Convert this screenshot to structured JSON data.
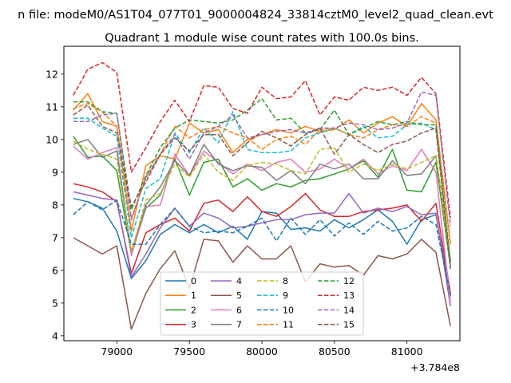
{
  "chart_data": {
    "type": "line",
    "suptitle": "n file: modeM0/AS1T04_077T01_9000004824_33814cztM0_level2_quad_clean.evt",
    "title": "Quadrant 1 module wise count rates with 100.0s bins.",
    "xlabel": "",
    "ylabel": "",
    "x_offset_label": "+3.784e8",
    "xlim": [
      78635,
      81365
    ],
    "ylim": [
      3.85,
      12.85
    ],
    "xticks": [
      79000,
      79500,
      80000,
      80500,
      81000
    ],
    "xtick_labels": [
      "79000",
      "79500",
      "80000",
      "80500",
      "81000"
    ],
    "yticks": [
      4,
      5,
      6,
      7,
      8,
      9,
      10,
      11,
      12
    ],
    "ytick_labels": [
      "4",
      "5",
      "6",
      "7",
      "8",
      "9",
      "10",
      "11",
      "12"
    ],
    "grid": false,
    "legend_position": "lower-center",
    "legend_columns": 4,
    "x": [
      78700,
      78800,
      78900,
      79000,
      79100,
      79200,
      79300,
      79400,
      79500,
      79600,
      79700,
      79800,
      79900,
      80000,
      80100,
      80200,
      80300,
      80400,
      80500,
      80600,
      80700,
      80800,
      80900,
      81000,
      81100,
      81200,
      81300
    ],
    "series": [
      {
        "name": "0",
        "color": "#1f77b4",
        "dash": "solid",
        "values": [
          8.2,
          8.1,
          7.9,
          7.2,
          5.75,
          6.3,
          7.1,
          7.4,
          7.15,
          7.4,
          7.15,
          7.35,
          6.95,
          7.8,
          7.75,
          7.25,
          7.3,
          7.2,
          7.55,
          7.3,
          7.55,
          7.85,
          7.5,
          6.8,
          7.55,
          7.7,
          5.2
        ]
      },
      {
        "name": "1",
        "color": "#ff7f0e",
        "dash": "solid",
        "values": [
          10.9,
          11.4,
          10.55,
          10.4,
          7.2,
          9.2,
          9.5,
          9.4,
          10.5,
          10.2,
          10.3,
          9.6,
          10.0,
          10.15,
          10.3,
          10.2,
          10.4,
          10.25,
          10.3,
          10.6,
          10.2,
          10.5,
          10.7,
          10.4,
          11.1,
          10.6,
          6.8
        ]
      },
      {
        "name": "2",
        "color": "#2ca02c",
        "dash": "solid",
        "values": [
          10.1,
          9.45,
          9.5,
          9.05,
          6.5,
          7.9,
          8.3,
          9.4,
          8.3,
          9.3,
          9.4,
          8.55,
          8.8,
          8.45,
          8.65,
          8.55,
          8.75,
          8.8,
          8.95,
          9.1,
          9.35,
          8.85,
          9.7,
          8.45,
          8.4,
          9.3,
          6.1
        ]
      },
      {
        "name": "3",
        "color": "#d62728",
        "dash": "solid",
        "values": [
          8.65,
          8.55,
          8.4,
          8.1,
          5.9,
          7.15,
          7.4,
          7.6,
          7.2,
          8.05,
          8.15,
          7.8,
          8.25,
          7.8,
          7.65,
          7.95,
          8.35,
          7.85,
          7.65,
          7.65,
          7.8,
          7.85,
          7.9,
          8.0,
          7.5,
          8.05,
          5.3
        ]
      },
      {
        "name": "4",
        "color": "#9467bd",
        "dash": "solid",
        "values": [
          8.4,
          8.3,
          8.2,
          8.15,
          5.8,
          6.5,
          7.3,
          7.9,
          7.35,
          7.75,
          7.6,
          7.3,
          7.35,
          7.45,
          7.55,
          7.55,
          7.7,
          7.75,
          7.75,
          8.35,
          7.75,
          7.9,
          7.8,
          7.95,
          7.7,
          7.75,
          4.9
        ]
      },
      {
        "name": "5",
        "color": "#8c564b",
        "dash": "solid",
        "values": [
          7.0,
          6.75,
          6.5,
          6.75,
          4.2,
          5.3,
          6.05,
          6.6,
          5.45,
          6.95,
          6.9,
          6.25,
          6.75,
          6.35,
          6.35,
          6.75,
          5.65,
          6.2,
          6.1,
          6.15,
          5.85,
          6.45,
          6.35,
          6.5,
          6.95,
          6.55,
          4.3
        ]
      },
      {
        "name": "6",
        "color": "#e377c2",
        "dash": "solid",
        "values": [
          9.8,
          9.4,
          9.6,
          9.75,
          6.45,
          7.95,
          8.0,
          9.55,
          8.9,
          9.65,
          9.3,
          8.95,
          9.25,
          9.05,
          9.3,
          9.4,
          9.0,
          9.1,
          9.4,
          9.1,
          9.4,
          8.95,
          9.2,
          9.05,
          9.7,
          9.0,
          5.0
        ]
      },
      {
        "name": "7",
        "color": "#7f7f7f",
        "dash": "solid",
        "values": [
          9.85,
          10.0,
          9.45,
          9.65,
          6.55,
          8.0,
          8.55,
          9.35,
          8.9,
          9.85,
          9.25,
          9.05,
          9.2,
          9.15,
          8.75,
          9.05,
          8.65,
          9.25,
          9.1,
          9.25,
          8.8,
          8.8,
          9.35,
          8.9,
          8.95,
          9.5,
          6.3
        ]
      },
      {
        "name": "8",
        "color": "#bcbd22",
        "dash": "dashed",
        "values": [
          9.95,
          9.7,
          9.55,
          9.4,
          6.55,
          8.15,
          8.35,
          9.25,
          8.85,
          9.55,
          9.0,
          8.75,
          9.2,
          9.3,
          9.25,
          9.05,
          8.95,
          9.7,
          9.75,
          9.0,
          9.25,
          9.05,
          9.25,
          9.1,
          9.3,
          9.5,
          6.2
        ]
      },
      {
        "name": "9",
        "color": "#17becf",
        "dash": "dashed",
        "values": [
          10.65,
          10.65,
          10.35,
          10.1,
          7.0,
          8.5,
          8.8,
          10.2,
          9.6,
          10.35,
          9.9,
          10.85,
          9.7,
          9.6,
          9.6,
          9.65,
          10.05,
          10.2,
          10.35,
          10.15,
          10.4,
          10.05,
          10.1,
          10.45,
          10.5,
          10.3,
          6.1
        ]
      },
      {
        "name": "10",
        "color": "#1f77b4",
        "dash": "dashed",
        "values": [
          7.7,
          8.1,
          7.85,
          8.15,
          6.8,
          6.8,
          7.4,
          7.9,
          7.35,
          7.15,
          7.2,
          7.15,
          7.35,
          7.6,
          6.9,
          7.6,
          7.1,
          7.55,
          7.05,
          7.45,
          7.1,
          7.5,
          7.2,
          7.3,
          7.65,
          7.4,
          5.25
        ]
      },
      {
        "name": "11",
        "color": "#ff7f0e",
        "dash": "dashed",
        "values": [
          10.95,
          11.1,
          10.85,
          10.4,
          7.6,
          8.8,
          9.55,
          10.4,
          10.05,
          10.3,
          10.4,
          10.2,
          10.05,
          9.7,
          10.0,
          10.1,
          9.85,
          10.3,
          10.35,
          10.15,
          10.05,
          10.3,
          10.45,
          10.4,
          10.7,
          10.5,
          6.8
        ]
      },
      {
        "name": "12",
        "color": "#2ca02c",
        "dash": "dashed",
        "values": [
          11.15,
          11.15,
          10.85,
          10.8,
          7.85,
          8.9,
          9.75,
          10.35,
          10.6,
          10.55,
          10.5,
          10.6,
          10.9,
          11.25,
          10.6,
          10.65,
          10.2,
          10.3,
          10.9,
          10.15,
          10.35,
          10.55,
          10.45,
          10.55,
          10.45,
          10.45,
          6.25
        ]
      },
      {
        "name": "13",
        "color": "#d62728",
        "dash": "dashed",
        "values": [
          11.35,
          12.15,
          12.35,
          12.05,
          9.0,
          9.75,
          10.55,
          11.2,
          10.55,
          11.65,
          11.6,
          10.95,
          10.8,
          11.6,
          11.25,
          11.3,
          11.8,
          10.75,
          11.3,
          11.2,
          11.6,
          11.5,
          11.6,
          11.35,
          11.9,
          11.4,
          7.6
        ]
      },
      {
        "name": "14",
        "color": "#9467bd",
        "dash": "dashed",
        "values": [
          10.55,
          10.55,
          10.75,
          10.8,
          7.55,
          8.85,
          9.55,
          10.15,
          9.4,
          10.2,
          10.4,
          10.75,
          10.05,
          10.15,
          10.25,
          10.3,
          10.2,
          10.35,
          10.35,
          10.5,
          10.45,
          10.3,
          10.35,
          10.5,
          11.45,
          11.35,
          7.35
        ]
      },
      {
        "name": "15",
        "color": "#8c564b",
        "dash": "dashed",
        "values": [
          10.75,
          11.05,
          10.4,
          10.2,
          7.95,
          8.7,
          9.55,
          10.05,
          9.65,
          10.15,
          10.15,
          9.5,
          9.9,
          10.25,
          10.05,
          9.8,
          10.15,
          10.35,
          9.55,
          10.15,
          9.85,
          9.6,
          9.85,
          9.95,
          10.2,
          10.35,
          6.05
        ]
      }
    ]
  }
}
